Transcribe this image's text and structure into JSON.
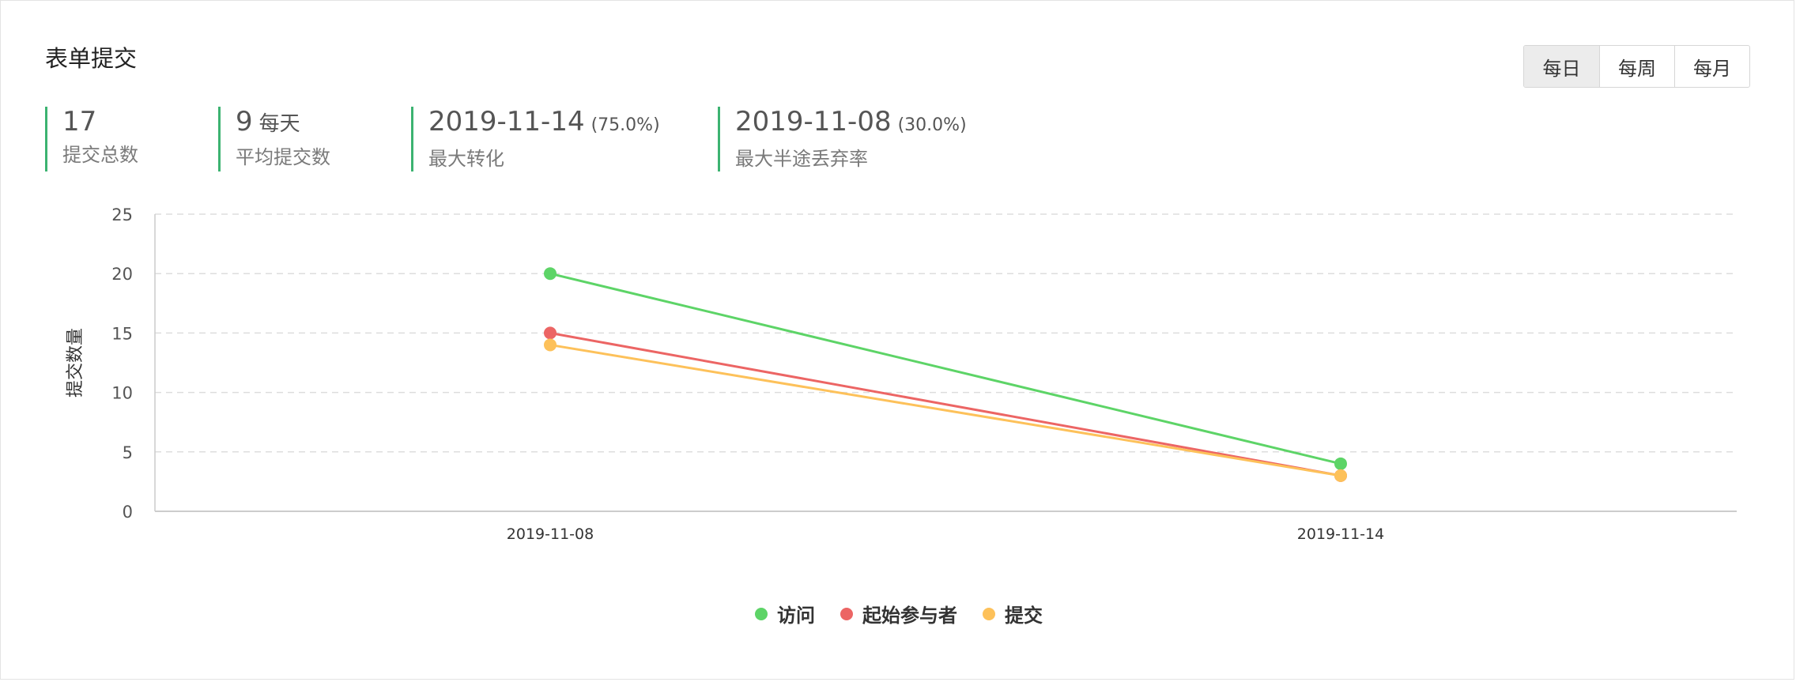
{
  "card": {
    "title": "表单提交"
  },
  "period_switch": {
    "options": [
      {
        "label": "每日",
        "active": true
      },
      {
        "label": "每周",
        "active": false
      },
      {
        "label": "每月",
        "active": false
      }
    ]
  },
  "stats": {
    "total": {
      "value": "17",
      "label": "提交总数"
    },
    "average": {
      "value": "9",
      "suffix": "每天",
      "label": "平均提交数"
    },
    "max_conversion": {
      "value": "2019-11-14",
      "percent": "(75.0%)",
      "label": "最大转化"
    },
    "max_abandon": {
      "value": "2019-11-08",
      "percent": "(30.0%)",
      "label": "最大半途丢弃率"
    }
  },
  "colors": {
    "accent": "#3cb371",
    "grid": "#dddddd",
    "axis": "#cccccc"
  },
  "chart_data": {
    "type": "line",
    "categories": [
      "2019-11-08",
      "2019-11-14"
    ],
    "ylabel": "提交数量",
    "ylim": [
      0,
      25
    ],
    "yticks": [
      0,
      5,
      10,
      15,
      20,
      25
    ],
    "grid": true,
    "legend_position": "bottom-center",
    "series": [
      {
        "name": "访问",
        "color": "#5dd467",
        "values": [
          20,
          4
        ]
      },
      {
        "name": "起始参与者",
        "color": "#ec6564",
        "values": [
          15,
          3
        ]
      },
      {
        "name": "提交",
        "color": "#fdc15a",
        "values": [
          14,
          3
        ]
      }
    ]
  }
}
